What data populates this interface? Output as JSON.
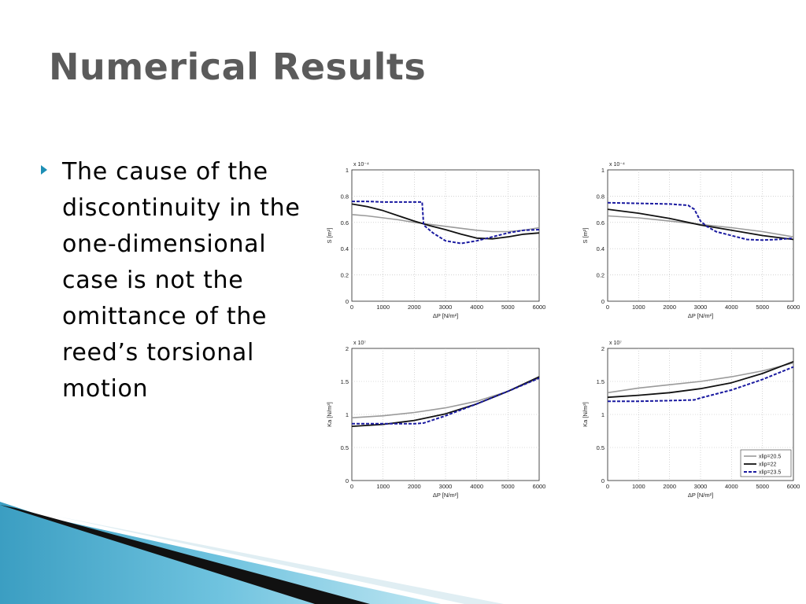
{
  "slide": {
    "title": "Numerical Results",
    "bullet": "The cause of the discontinuity in the one-dimensional case is not the omittance of the reed’s torsional motion"
  },
  "colors": {
    "accent": "#1d8fb5",
    "title": "#5b5b5b"
  },
  "chart_data": [
    {
      "type": "line",
      "position": "top-left",
      "xlabel": "ΔP [N/m²]",
      "ylabel": "S [m²]",
      "y_exponent": "x 10⁻⁴",
      "xlim": [
        0,
        6000
      ],
      "ylim": [
        0,
        1
      ],
      "xticks": [
        "0",
        "1000",
        "2000",
        "3000",
        "4000",
        "5000",
        "6000"
      ],
      "yticks": [
        "0",
        "0.2",
        "0.4",
        "0.6",
        "0.8",
        "1"
      ],
      "grid": true,
      "series": [
        {
          "name": "xlip=20.5",
          "x": [
            0,
            500,
            1000,
            1500,
            2000,
            2500,
            3000,
            3500,
            4000,
            4500,
            5000,
            5500,
            6000
          ],
          "y": [
            0.66,
            0.65,
            0.635,
            0.62,
            0.6,
            0.585,
            0.57,
            0.555,
            0.54,
            0.53,
            0.53,
            0.54,
            0.56
          ]
        },
        {
          "name": "xlip=22",
          "x": [
            0,
            500,
            1000,
            1500,
            2000,
            2500,
            3000,
            3500,
            4000,
            4500,
            5000,
            5500,
            6000
          ],
          "y": [
            0.74,
            0.72,
            0.69,
            0.65,
            0.61,
            0.575,
            0.545,
            0.51,
            0.48,
            0.475,
            0.49,
            0.51,
            0.52
          ]
        },
        {
          "name": "xlip=23.5",
          "x": [
            0,
            500,
            1000,
            1500,
            2000,
            2250,
            2300,
            2600,
            3000,
            3500,
            4000,
            4500,
            5000,
            5500,
            6000
          ],
          "y": [
            0.76,
            0.76,
            0.755,
            0.755,
            0.755,
            0.755,
            0.58,
            0.52,
            0.46,
            0.44,
            0.46,
            0.49,
            0.52,
            0.54,
            0.545
          ]
        }
      ]
    },
    {
      "type": "line",
      "position": "top-right",
      "xlabel": "ΔP [N/m²]",
      "ylabel": "S [m²]",
      "y_exponent": "x 10⁻⁴",
      "xlim": [
        0,
        6000
      ],
      "ylim": [
        0,
        1
      ],
      "xticks": [
        "0",
        "1000",
        "2000",
        "3000",
        "4000",
        "5000",
        "6000"
      ],
      "yticks": [
        "0",
        "0.2",
        "0.4",
        "0.6",
        "0.8",
        "1"
      ],
      "grid": true,
      "series": [
        {
          "name": "xlip=20.5",
          "x": [
            0,
            1000,
            2000,
            3000,
            4000,
            5000,
            6000
          ],
          "y": [
            0.65,
            0.635,
            0.61,
            0.585,
            0.56,
            0.53,
            0.49
          ]
        },
        {
          "name": "xlip=22",
          "x": [
            0,
            1000,
            2000,
            3000,
            4000,
            5000,
            6000
          ],
          "y": [
            0.7,
            0.67,
            0.63,
            0.58,
            0.54,
            0.5,
            0.47
          ]
        },
        {
          "name": "xlip=23.5",
          "x": [
            0,
            1000,
            2000,
            2600,
            2800,
            3000,
            3200,
            3500,
            4000,
            4500,
            5000,
            5500,
            6000
          ],
          "y": [
            0.75,
            0.745,
            0.74,
            0.73,
            0.7,
            0.61,
            0.57,
            0.53,
            0.5,
            0.47,
            0.465,
            0.47,
            0.48
          ]
        }
      ]
    },
    {
      "type": "line",
      "position": "bottom-left",
      "xlabel": "ΔP [N/m²]",
      "ylabel": "Ka [N/m³]",
      "y_exponent": "x 10⁷",
      "xlim": [
        0,
        6000
      ],
      "ylim": [
        0,
        2
      ],
      "xticks": [
        "0",
        "1000",
        "2000",
        "3000",
        "4000",
        "5000",
        "6000"
      ],
      "yticks": [
        "0",
        "0.5",
        "1",
        "1.5",
        "2"
      ],
      "grid": true,
      "series": [
        {
          "name": "xlip=20.5",
          "x": [
            0,
            1000,
            2000,
            3000,
            4000,
            5000,
            6000
          ],
          "y": [
            0.95,
            0.98,
            1.03,
            1.1,
            1.2,
            1.35,
            1.55
          ]
        },
        {
          "name": "xlip=22",
          "x": [
            0,
            1000,
            2000,
            3000,
            4000,
            5000,
            6000
          ],
          "y": [
            0.82,
            0.85,
            0.91,
            1.01,
            1.16,
            1.35,
            1.57
          ]
        },
        {
          "name": "xlip=23.5",
          "x": [
            0,
            1000,
            2000,
            2300,
            3000,
            4000,
            5000,
            6000
          ],
          "y": [
            0.86,
            0.86,
            0.86,
            0.87,
            0.98,
            1.16,
            1.35,
            1.55
          ]
        }
      ]
    },
    {
      "type": "line",
      "position": "bottom-right",
      "xlabel": "ΔP [N/m²]",
      "ylabel": "Ka [N/m³]",
      "y_exponent": "x 10⁷",
      "xlim": [
        0,
        6000
      ],
      "ylim": [
        0,
        2
      ],
      "xticks": [
        "0",
        "1000",
        "2000",
        "3000",
        "4000",
        "5000",
        "6000"
      ],
      "yticks": [
        "0",
        "0.5",
        "1",
        "1.5",
        "2"
      ],
      "grid": true,
      "legend": {
        "placement": "bottom-right",
        "entries": [
          "xlip=20.5",
          "xlip=22",
          "xlip=23.5"
        ]
      },
      "series": [
        {
          "name": "xlip=20.5",
          "x": [
            0,
            1000,
            2000,
            3000,
            4000,
            5000,
            6000
          ],
          "y": [
            1.33,
            1.4,
            1.45,
            1.5,
            1.57,
            1.66,
            1.78
          ]
        },
        {
          "name": "xlip=22",
          "x": [
            0,
            1000,
            2000,
            3000,
            4000,
            5000,
            6000
          ],
          "y": [
            1.26,
            1.29,
            1.33,
            1.39,
            1.48,
            1.62,
            1.8
          ]
        },
        {
          "name": "xlip=23.5",
          "x": [
            0,
            1000,
            2000,
            2800,
            3000,
            4000,
            5000,
            6000
          ],
          "y": [
            1.2,
            1.2,
            1.21,
            1.22,
            1.25,
            1.37,
            1.53,
            1.72
          ]
        }
      ]
    }
  ]
}
